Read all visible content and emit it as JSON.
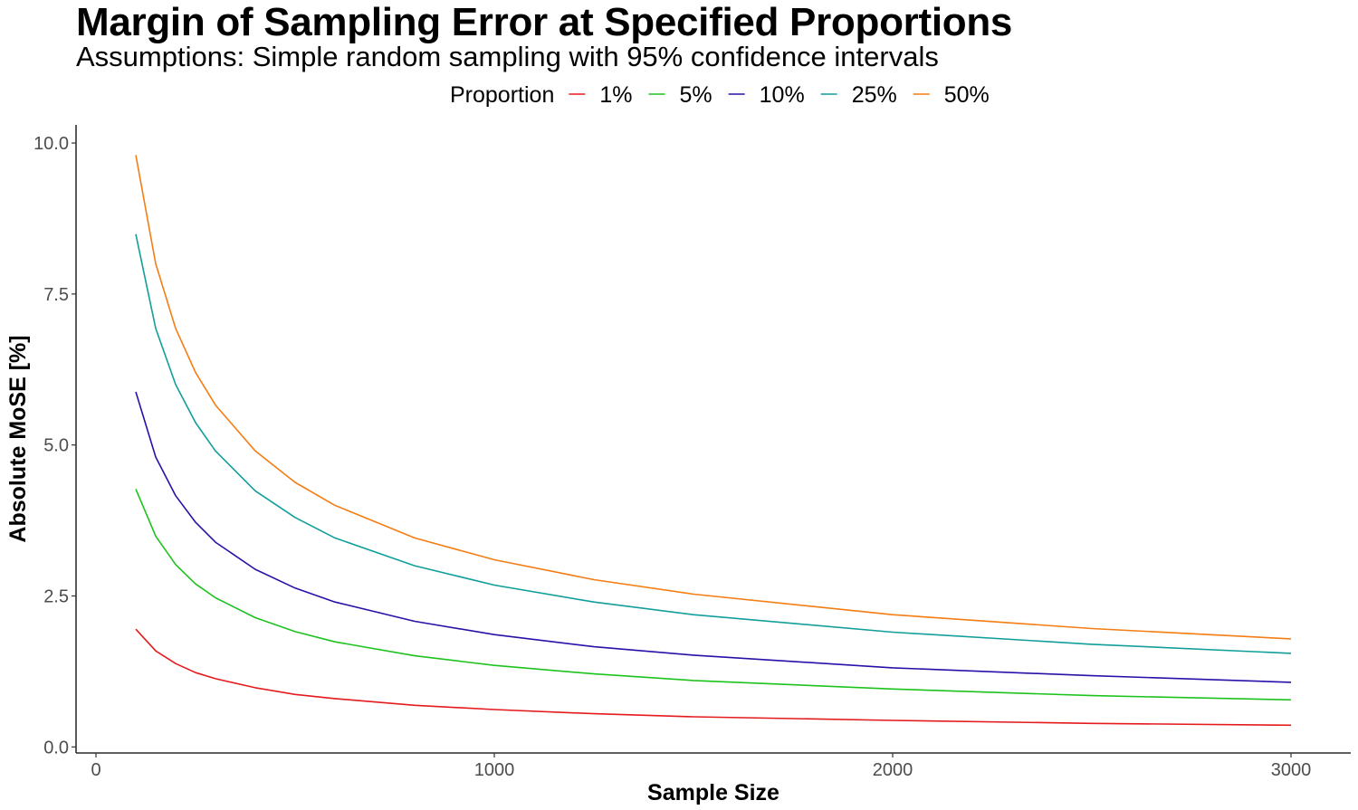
{
  "chart_data": {
    "type": "line",
    "title": "Margin of Sampling Error at Specified Proportions",
    "subtitle": "Assumptions: Simple random sampling with 95% confidence intervals",
    "xlabel": "Sample Size",
    "ylabel": "Absolute MoSE [%]",
    "xlim": [
      -50,
      3150
    ],
    "ylim": [
      -0.1,
      10.3
    ],
    "x_ticks": [
      0,
      1000,
      2000,
      3000
    ],
    "x_tick_labels": [
      "0",
      "1000",
      "2000",
      "3000"
    ],
    "y_ticks": [
      0,
      2.5,
      5,
      7.5,
      10
    ],
    "y_tick_labels": [
      "0.0",
      "2.5",
      "5.0",
      "7.5",
      "10.0"
    ],
    "grid": false,
    "legend": {
      "title": "Proportion",
      "position": "top"
    },
    "x": [
      100,
      150,
      200,
      250,
      300,
      400,
      500,
      600,
      800,
      1000,
      1250,
      1500,
      2000,
      2500,
      3000
    ],
    "series": [
      {
        "name": "1%",
        "color": "#e41a1c",
        "values": [
          1.95,
          1.59,
          1.38,
          1.23,
          1.13,
          0.98,
          0.87,
          0.8,
          0.69,
          0.62,
          0.55,
          0.5,
          0.44,
          0.39,
          0.36
        ]
      },
      {
        "name": "5%",
        "color": "#1dc31d",
        "values": [
          4.27,
          3.49,
          3.02,
          2.7,
          2.47,
          2.14,
          1.91,
          1.74,
          1.51,
          1.35,
          1.21,
          1.1,
          0.96,
          0.85,
          0.78
        ]
      },
      {
        "name": "10%",
        "color": "#2c0fa8",
        "values": [
          5.88,
          4.8,
          4.16,
          3.72,
          3.39,
          2.94,
          2.63,
          2.4,
          2.08,
          1.86,
          1.66,
          1.52,
          1.31,
          1.18,
          1.07
        ]
      },
      {
        "name": "25%",
        "color": "#129e9b",
        "values": [
          8.49,
          6.93,
          6.0,
          5.37,
          4.9,
          4.24,
          3.8,
          3.46,
          3.0,
          2.68,
          2.4,
          2.19,
          1.9,
          1.7,
          1.55
        ]
      },
      {
        "name": "50%",
        "color": "#f47d14",
        "values": [
          9.8,
          8.0,
          6.93,
          6.2,
          5.66,
          4.9,
          4.38,
          4.0,
          3.46,
          3.1,
          2.77,
          2.53,
          2.19,
          1.96,
          1.79
        ]
      }
    ]
  }
}
